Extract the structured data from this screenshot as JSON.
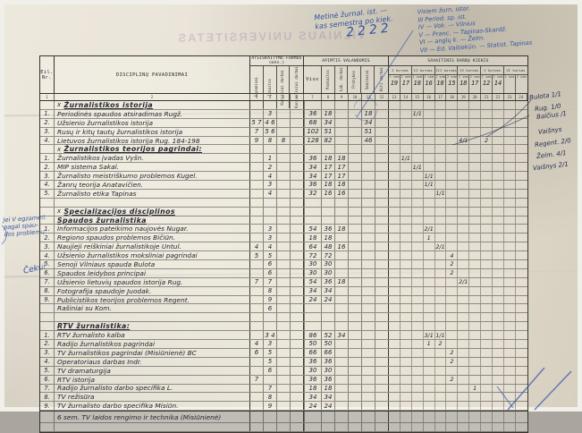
{
  "ghost_stamp": "VILNIAUS UNIVERSITETAS",
  "annotations": {
    "top_center_lines": [
      "Metinė žurnal. ist. —",
      "kas semestrą po kiek."
    ],
    "top_center_number": "2222",
    "top_right_lines": [
      "Visiem žurn. istor.",
      "III  Period. sp. ist.",
      "IV — Vok. — Vilnius",
      "V — Pranc. — Tapinas-Skardž.",
      "VI — anglų k. — Želm.",
      "VII — Ed. Vaitiekūn. — Statist. Tapinas"
    ],
    "left_margin_lines": [
      "Jei V egzamed.",
      "pagal spau-",
      "dos problemų"
    ],
    "left_margin_2": "Čekui",
    "right_margin_lines": [
      "Bulota 1/1",
      "Rug. 1/0",
      "Balčius /1",
      "Vaišnys",
      "Regent. 2/0",
      "Želm. 4/1",
      "Vaišnys 2/1"
    ]
  },
  "table": {
    "col_headers": {
      "nr": "Eil. Nr.",
      "name": "DISCIPLINŲ  PAVADINIMAI",
      "forms_group": "ATSISKAITYMO FORMOS (mėn.)",
      "forms": [
        "Egzaminai",
        "Įskaitos",
        "Kursiniai darbai",
        "Kontroliniai darbai"
      ],
      "hours_group": "APIMTIS VALANDOMIS",
      "viso": "Viso",
      "hours": [
        "Paskaitos",
        "Lab. darbai",
        "Pratybos",
        "Seminarai",
        "Kiti darbai"
      ],
      "weekly_group": "SAVAITINIS DARBŲ KIEKIS",
      "courses": [
        "I kursas",
        "II kursas",
        "III kursas",
        "IV kursas",
        "V kursas",
        "VI kursas"
      ],
      "sem_labels": [
        "1 sem",
        "2 sem"
      ],
      "week_counts": [
        "19",
        "17",
        "18",
        "16",
        "18",
        "15",
        "18",
        "17",
        "12",
        "14",
        "",
        ""
      ],
      "col_indices": [
        "1",
        "2",
        "3",
        "4",
        "5",
        "6",
        "7",
        "8",
        "9",
        "10",
        "11",
        "12",
        "13",
        "14",
        "15",
        "16",
        "17",
        "18",
        "19",
        "20",
        "21",
        "22",
        "23",
        "24"
      ]
    },
    "sections": [
      {
        "x_mark": "x",
        "title": "Žurnalistikos istorija",
        "subtitle": "",
        "rows": [
          {
            "nr": "1.",
            "name": "Periodinės spaudos atsiradimas  Rugž.",
            "f": [
              "",
              "3",
              "",
              ""
            ],
            "h": [
              "36",
              "18",
              "",
              "",
              "18",
              ""
            ],
            "m": [
              {
                "t": "1/1",
                "p": 2
              }
            ]
          },
          {
            "nr": "2.",
            "name": "Užsienio žurnalistikos istorija",
            "f": [
              "5 7",
              "4 6",
              "",
              ""
            ],
            "h": [
              "68",
              "34",
              "",
              "",
              "34",
              ""
            ],
            "m": []
          },
          {
            "nr": "3.",
            "name": "Rusų ir kitų tautų žurnalistikos istorija",
            "f": [
              "7",
              "5 6",
              "",
              ""
            ],
            "h": [
              "102",
              "51",
              "",
              "",
              "51",
              ""
            ],
            "m": []
          },
          {
            "nr": "4.",
            "name": "Lietuvos žurnalistikos istorija  Rug. 184-198",
            "f": [
              "9",
              "8",
              "8",
              ""
            ],
            "h": [
              "128",
              "82",
              "",
              "",
              "46",
              ""
            ],
            "m": [
              {
                "t": "4/1",
                "p": 6
              },
              {
                "t": "2",
                "p": 8
              }
            ]
          }
        ]
      },
      {
        "x_mark": "x",
        "title": "Žurnalistikos teorijos pagrindai:",
        "subtitle": "",
        "rows": [
          {
            "nr": "1.",
            "name": "Žurnalistikos įvadas  Vyšn.",
            "f": [
              "",
              "1",
              "",
              ""
            ],
            "h": [
              "36",
              "18",
              "18",
              "",
              "",
              ""
            ],
            "m": [
              {
                "t": "1/1",
                "p": 1
              }
            ]
          },
          {
            "nr": "2.",
            "name": "MIP sistema  Sakal.",
            "f": [
              "",
              "2",
              "",
              ""
            ],
            "h": [
              "34",
              "17",
              "17",
              "",
              "",
              ""
            ],
            "m": [
              {
                "t": "1/1",
                "p": 2
              }
            ]
          },
          {
            "nr": "3.",
            "name": "Žurnalisto meistriškumo problemos  Kugel.",
            "f": [
              "",
              "4",
              "",
              ""
            ],
            "h": [
              "34",
              "17",
              "17",
              "",
              "",
              ""
            ],
            "m": [
              {
                "t": "1/1",
                "p": 3
              }
            ]
          },
          {
            "nr": "4.",
            "name": "Žanrų teorija  Anatavičien.",
            "f": [
              "",
              "3",
              "",
              ""
            ],
            "h": [
              "36",
              "18",
              "18",
              "",
              "",
              ""
            ],
            "m": [
              {
                "t": "1/1",
                "p": 3
              }
            ]
          },
          {
            "nr": "5.",
            "name": "Žurnalisto etika  Tapinas",
            "f": [
              "",
              "4",
              "",
              ""
            ],
            "h": [
              "32",
              "16",
              "16",
              "",
              "",
              ""
            ],
            "m": [
              {
                "t": "1/1",
                "p": 4
              }
            ]
          }
        ]
      },
      {
        "x_mark": "x",
        "title": "Specializacijos disciplinos",
        "subtitle": "Spaudos žurnalistika",
        "rows": [
          {
            "nr": "1.",
            "name": "Informacijos pateikimo naujovės  Nugar.",
            "f": [
              "",
              "3",
              "",
              ""
            ],
            "h": [
              "54",
              "36",
              "18",
              "",
              "",
              ""
            ],
            "m": [
              {
                "t": "2/1",
                "p": 3
              }
            ]
          },
          {
            "nr": "2.",
            "name": "Regiono spaudos problemos  Bičiūn.",
            "f": [
              "",
              "3",
              "",
              ""
            ],
            "h": [
              "18",
              "18",
              "",
              "",
              "",
              ""
            ],
            "m": [
              {
                "t": "1",
                "p": 3
              }
            ]
          },
          {
            "nr": "3.",
            "name": "Naujieji reiškiniai žurnalistikoje  Untul.",
            "f": [
              "4",
              "4",
              "",
              ""
            ],
            "h": [
              "64",
              "48",
              "16",
              "",
              "",
              ""
            ],
            "m": [
              {
                "t": "2/1",
                "p": 4
              }
            ]
          },
          {
            "nr": "4.",
            "name": "Užsienio žurnalistikos moksliniai pagrindai",
            "f": [
              "5",
              "5",
              "",
              ""
            ],
            "h": [
              "72",
              "72",
              "",
              "",
              "",
              ""
            ],
            "m": [
              {
                "t": "4",
                "p": 5
              }
            ]
          },
          {
            "nr": "5.",
            "name": "Senoji Vilniaus spauda  Bulota",
            "f": [
              "",
              "6",
              "",
              ""
            ],
            "h": [
              "30",
              "30",
              "",
              "",
              "",
              ""
            ],
            "m": [
              {
                "t": "2",
                "p": 5
              }
            ]
          },
          {
            "nr": "6.",
            "name": "Spaudos leidybos principai",
            "f": [
              "",
              "6",
              "",
              ""
            ],
            "h": [
              "30",
              "30",
              "",
              "",
              "",
              ""
            ],
            "m": [
              {
                "t": "2",
                "p": 5
              }
            ]
          },
          {
            "nr": "7.",
            "name": "Užsienio lietuvių spaudos istorija  Rug.",
            "f": [
              "7",
              "7",
              "",
              ""
            ],
            "h": [
              "54",
              "36",
              "18",
              "",
              "",
              ""
            ],
            "m": [
              {
                "t": "2/1",
                "p": 6
              }
            ]
          },
          {
            "nr": "8.",
            "name": "Fotografija spaudoje  Juodak.",
            "f": [
              "",
              "8",
              "",
              ""
            ],
            "h": [
              "34",
              "34",
              "",
              "",
              "",
              ""
            ],
            "m": []
          },
          {
            "nr": "9.",
            "name": "Publicistikos teorijos problemos  Regent.",
            "f": [
              "",
              "9",
              "",
              ""
            ],
            "h": [
              "24",
              "24",
              "",
              "",
              "",
              ""
            ],
            "m": []
          },
          {
            "nr": "",
            "name": "Rašiniai  su  Kom.",
            "f": [
              "",
              "6",
              "",
              ""
            ],
            "h": [
              "",
              "",
              "",
              "",
              "",
              ""
            ],
            "m": []
          }
        ]
      },
      {
        "x_mark": "",
        "title": "RTV žurnalistika:",
        "subtitle": "",
        "rows": [
          {
            "nr": "1.",
            "name": "RTV žurnalisto kalba",
            "f": [
              "",
              "3 4",
              "",
              ""
            ],
            "h": [
              "86",
              "52",
              "34",
              "",
              "",
              ""
            ],
            "m": [
              {
                "t": "3/1",
                "p": 3
              },
              {
                "t": "1/1",
                "p": 4
              }
            ]
          },
          {
            "nr": "2.",
            "name": "Radijo žurnalistikos pagrindai",
            "f": [
              "4",
              "3",
              "",
              ""
            ],
            "h": [
              "50",
              "50",
              "",
              "",
              "",
              ""
            ],
            "m": [
              {
                "t": "1",
                "p": 3
              },
              {
                "t": "2",
                "p": 4
              }
            ]
          },
          {
            "nr": "3.",
            "name": "TV žurnalistikos pagrindai (Misiūnienė) BC",
            "f": [
              "6",
              "5",
              "",
              ""
            ],
            "h": [
              "66",
              "66",
              "",
              "",
              "",
              ""
            ],
            "m": [
              {
                "t": "2",
                "p": 5
              }
            ]
          },
          {
            "nr": "4.",
            "name": "Operatoriaus darbas  Indr.",
            "f": [
              "",
              "5",
              "",
              ""
            ],
            "h": [
              "36",
              "36",
              "",
              "",
              "",
              ""
            ],
            "m": [
              {
                "t": "2",
                "p": 5
              }
            ]
          },
          {
            "nr": "5.",
            "name": "TV dramaturgija",
            "f": [
              "",
              "6",
              "",
              ""
            ],
            "h": [
              "30",
              "30",
              "",
              "",
              "",
              ""
            ],
            "m": []
          },
          {
            "nr": "6.",
            "name": "RTV istorija",
            "f": [
              "7",
              "",
              "",
              ""
            ],
            "h": [
              "36",
              "36",
              "",
              "",
              "",
              ""
            ],
            "m": [
              {
                "t": "2",
                "p": 5
              }
            ]
          },
          {
            "nr": "7.",
            "name": "Radijo žurnalisto darbo specifika  L.",
            "f": [
              "",
              "7",
              "",
              ""
            ],
            "h": [
              "18",
              "18",
              "",
              "",
              "",
              ""
            ],
            "m": [
              {
                "t": "1",
                "p": 7
              }
            ]
          },
          {
            "nr": "8.",
            "name": "TV režisūra",
            "f": [
              "",
              "8",
              "",
              ""
            ],
            "h": [
              "34",
              "34",
              "",
              "",
              "",
              ""
            ],
            "m": []
          },
          {
            "nr": "9.",
            "name": "TV žurnalisto darbo specifika  Misiūn.",
            "f": [
              "",
              "9",
              "",
              ""
            ],
            "h": [
              "24",
              "24",
              "",
              "",
              "",
              ""
            ],
            "m": []
          }
        ]
      }
    ],
    "footer_row": "6 sem. TV laidos rengimo ir technika (Misiūnienė)"
  }
}
